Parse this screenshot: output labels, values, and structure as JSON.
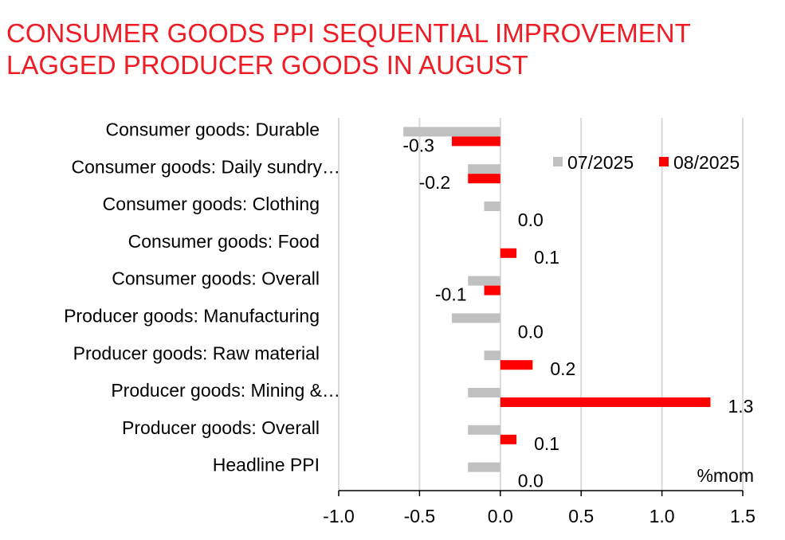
{
  "chart_data": {
    "type": "bar",
    "orientation": "horizontal",
    "title_lines": [
      "CONSUMER GOODS PPI SEQUENTIAL IMPROVEMENT",
      "LAGGED PRODUCER GOODS IN AUGUST"
    ],
    "unit_label": "%mom",
    "categories": [
      "Consumer goods: Durable",
      "Consumer goods: Daily sundry…",
      "Consumer goods: Clothing",
      "Consumer goods: Food",
      "Consumer goods: Overall",
      "Producer goods: Manufacturing",
      "Producer goods: Raw material",
      "Producer goods: Mining &…",
      "Producer goods: Overall",
      "Headline PPI"
    ],
    "series": [
      {
        "name": "07/2025",
        "color": "#c0c0c0",
        "values": [
          -0.6,
          -0.2,
          -0.1,
          0.0,
          -0.2,
          -0.3,
          -0.1,
          -0.2,
          -0.2,
          -0.2
        ]
      },
      {
        "name": "08/2025",
        "color": "#ff0000",
        "values": [
          -0.3,
          -0.2,
          0.0,
          0.1,
          -0.1,
          0.0,
          0.2,
          1.3,
          0.1,
          0.0
        ]
      }
    ],
    "data_labels": [
      "-0.3",
      "-0.2",
      "0.0",
      "0.1",
      "-0.1",
      "0.0",
      "0.2",
      "1.3",
      "0.1",
      "0.0"
    ],
    "xlim": [
      -1.0,
      1.5
    ],
    "xticks": [
      "-1.0",
      "-0.5",
      "0.0",
      "0.5",
      "1.0",
      "1.5"
    ],
    "grid": true,
    "legend_position": "top-right"
  },
  "colors": {
    "title": "#ee1c25",
    "grid": "#d9d9d9",
    "axis": "#000000"
  }
}
